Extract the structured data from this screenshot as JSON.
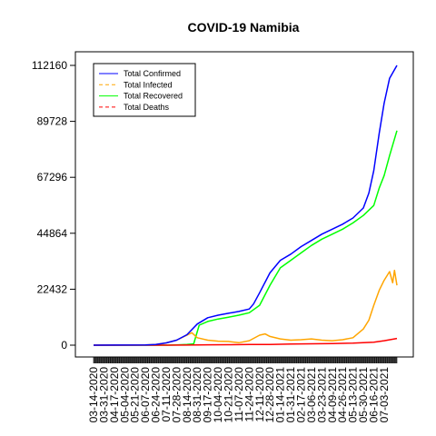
{
  "chart_data": {
    "type": "line",
    "title": "COVID-19 Namibia",
    "xlabel": "",
    "ylabel": "",
    "ylim": [
      0,
      112160
    ],
    "yticks": [
      0,
      22432,
      44864,
      67296,
      89728,
      112160
    ],
    "x_start": "03-14-2020",
    "x_end": "07-24-2021",
    "x_tick_labels": [
      "03-14-2020",
      "03-31-2020",
      "04-17-2020",
      "05-04-2020",
      "05-21-2020",
      "06-07-2020",
      "06-24-2020",
      "07-11-2020",
      "07-28-2020",
      "08-14-2020",
      "08-31-2020",
      "09-17-2020",
      "10-04-2020",
      "10-21-2020",
      "11-07-2020",
      "11-24-2020",
      "12-11-2020",
      "12-28-2020",
      "01-14-2021",
      "01-31-2021",
      "02-17-2021",
      "03-06-2021",
      "03-23-2021",
      "04-09-2021",
      "04-26-2021",
      "05-13-2021",
      "05-30-2021",
      "06-16-2021",
      "07-03-2021"
    ],
    "legend_position": "top-left",
    "series": [
      {
        "name": "Total Confirmed",
        "color": "#0000ff",
        "dash": "solid",
        "points": [
          [
            "03-14-2020",
            0
          ],
          [
            "06-07-2020",
            100
          ],
          [
            "06-24-2020",
            300
          ],
          [
            "07-11-2020",
            900
          ],
          [
            "07-28-2020",
            2000
          ],
          [
            "08-14-2020",
            4200
          ],
          [
            "08-31-2020",
            8500
          ],
          [
            "09-17-2020",
            11000
          ],
          [
            "10-04-2020",
            12000
          ],
          [
            "10-21-2020",
            12800
          ],
          [
            "11-07-2020",
            13500
          ],
          [
            "11-24-2020",
            14500
          ],
          [
            "12-01-2020",
            16500
          ],
          [
            "12-11-2020",
            21000
          ],
          [
            "12-28-2020",
            29000
          ],
          [
            "01-14-2021",
            34000
          ],
          [
            "01-31-2021",
            36500
          ],
          [
            "02-17-2021",
            39500
          ],
          [
            "03-06-2021",
            42000
          ],
          [
            "03-23-2021",
            44500
          ],
          [
            "04-09-2021",
            46500
          ],
          [
            "04-26-2021",
            48500
          ],
          [
            "05-13-2021",
            51000
          ],
          [
            "05-30-2021",
            55000
          ],
          [
            "06-08-2021",
            61000
          ],
          [
            "06-16-2021",
            70000
          ],
          [
            "06-25-2021",
            85000
          ],
          [
            "07-03-2021",
            97000
          ],
          [
            "07-12-2021",
            107000
          ],
          [
            "07-24-2021",
            112160
          ]
        ]
      },
      {
        "name": "Total Infected",
        "color": "#ffa500",
        "dash": "dashed",
        "points": [
          [
            "03-14-2020",
            0
          ],
          [
            "06-07-2020",
            100
          ],
          [
            "06-24-2020",
            300
          ],
          [
            "07-11-2020",
            900
          ],
          [
            "07-28-2020",
            2000
          ],
          [
            "08-14-2020",
            4000
          ],
          [
            "08-22-2020",
            5000
          ],
          [
            "08-31-2020",
            3000
          ],
          [
            "09-17-2020",
            2000
          ],
          [
            "10-04-2020",
            1600
          ],
          [
            "10-21-2020",
            1500
          ],
          [
            "11-07-2020",
            1000
          ],
          [
            "11-24-2020",
            1800
          ],
          [
            "12-11-2020",
            4000
          ],
          [
            "12-20-2020",
            4500
          ],
          [
            "12-28-2020",
            3500
          ],
          [
            "01-14-2021",
            2500
          ],
          [
            "01-31-2021",
            2000
          ],
          [
            "02-17-2021",
            2200
          ],
          [
            "03-06-2021",
            2500
          ],
          [
            "03-23-2021",
            2000
          ],
          [
            "04-09-2021",
            1800
          ],
          [
            "04-26-2021",
            2200
          ],
          [
            "05-13-2021",
            3000
          ],
          [
            "05-30-2021",
            6500
          ],
          [
            "06-08-2021",
            10000
          ],
          [
            "06-16-2021",
            16000
          ],
          [
            "06-25-2021",
            22000
          ],
          [
            "07-03-2021",
            26000
          ],
          [
            "07-12-2021",
            29500
          ],
          [
            "07-17-2021",
            25000
          ],
          [
            "07-20-2021",
            30000
          ],
          [
            "07-24-2021",
            24000
          ]
        ]
      },
      {
        "name": "Total Recovered",
        "color": "#00ff00",
        "dash": "solid",
        "points": [
          [
            "03-14-2020",
            0
          ],
          [
            "07-11-2020",
            0
          ],
          [
            "07-28-2020",
            100
          ],
          [
            "08-14-2020",
            300
          ],
          [
            "08-25-2020",
            500
          ],
          [
            "09-03-2020",
            8000
          ],
          [
            "09-17-2020",
            9500
          ],
          [
            "10-04-2020",
            10500
          ],
          [
            "10-21-2020",
            11200
          ],
          [
            "11-07-2020",
            12000
          ],
          [
            "11-24-2020",
            13000
          ],
          [
            "12-11-2020",
            16000
          ],
          [
            "12-28-2020",
            24000
          ],
          [
            "01-14-2021",
            31000
          ],
          [
            "01-31-2021",
            34000
          ],
          [
            "02-17-2021",
            37000
          ],
          [
            "03-06-2021",
            40000
          ],
          [
            "03-23-2021",
            42500
          ],
          [
            "04-09-2021",
            44500
          ],
          [
            "04-26-2021",
            46500
          ],
          [
            "05-13-2021",
            49000
          ],
          [
            "05-30-2021",
            52000
          ],
          [
            "06-16-2021",
            56000
          ],
          [
            "06-25-2021",
            63000
          ],
          [
            "07-03-2021",
            68000
          ],
          [
            "07-12-2021",
            76000
          ],
          [
            "07-24-2021",
            86000
          ]
        ]
      },
      {
        "name": "Total Deaths",
        "color": "#ff0000",
        "dash": "dashed",
        "points": [
          [
            "03-14-2020",
            0
          ],
          [
            "07-11-2020",
            0
          ],
          [
            "08-14-2020",
            40
          ],
          [
            "08-31-2020",
            100
          ],
          [
            "09-17-2020",
            150
          ],
          [
            "10-21-2020",
            200
          ],
          [
            "11-24-2020",
            250
          ],
          [
            "12-28-2020",
            300
          ],
          [
            "01-31-2021",
            450
          ],
          [
            "03-06-2021",
            550
          ],
          [
            "04-09-2021",
            650
          ],
          [
            "05-13-2021",
            800
          ],
          [
            "06-16-2021",
            1200
          ],
          [
            "07-03-2021",
            1800
          ],
          [
            "07-24-2021",
            2700
          ]
        ]
      }
    ]
  }
}
